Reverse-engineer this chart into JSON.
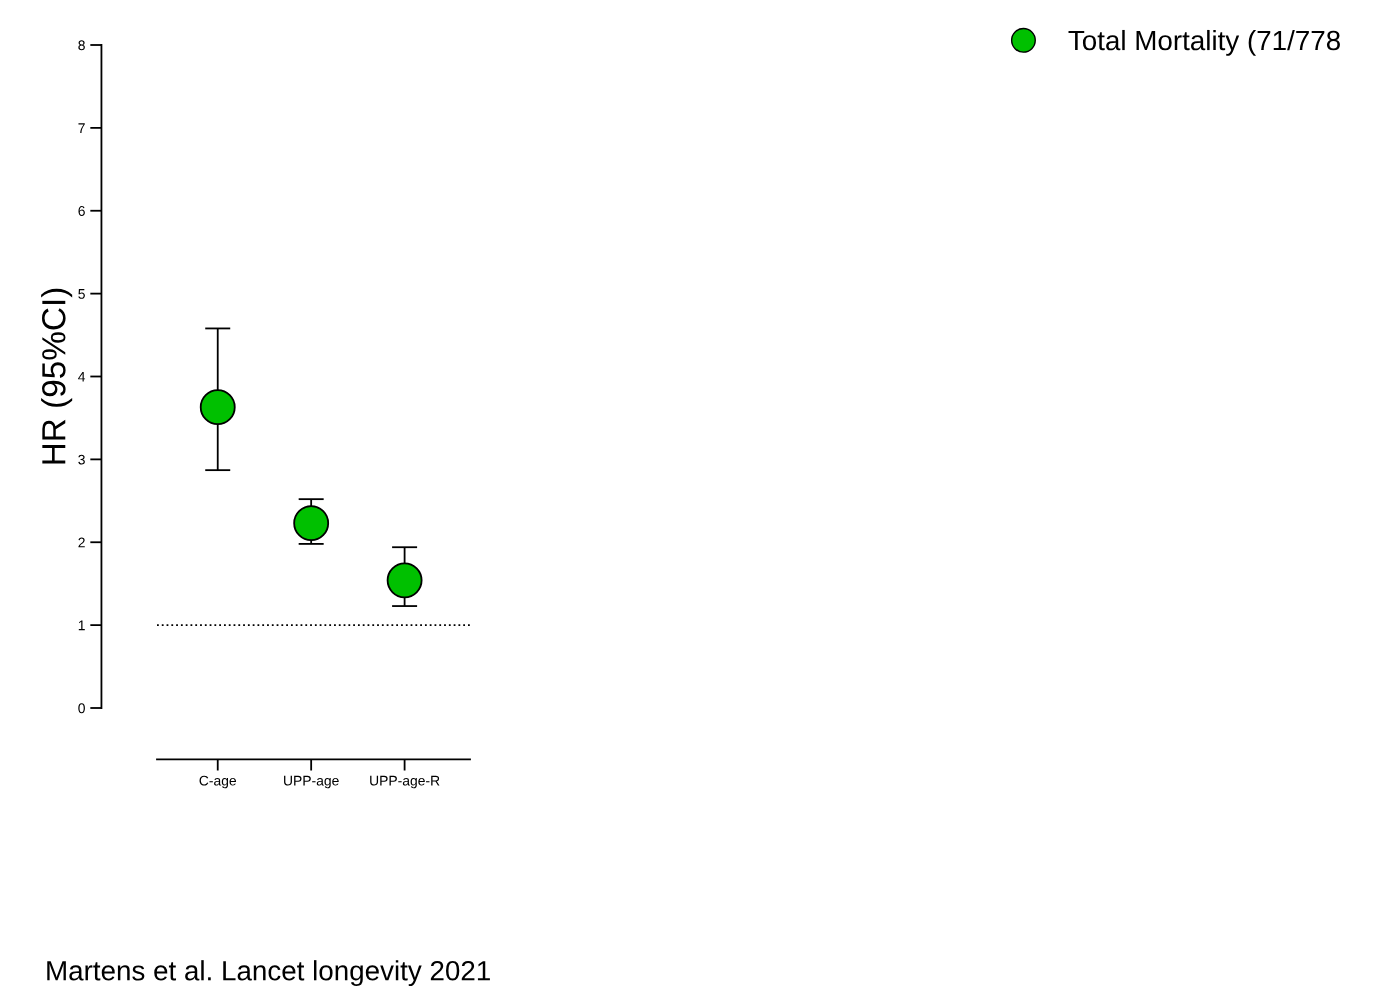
{
  "chart_data": {
    "type": "scatter",
    "ylabel": "HR (95%CI)",
    "categories": [
      "C-age",
      "UPP-age",
      "UPP-age-R"
    ],
    "series": [
      {
        "name": "Total Mortality (71/778",
        "color": "#00c000",
        "values": [
          3.63,
          2.23,
          1.54
        ],
        "errors": [
          [
            2.87,
            4.58
          ],
          [
            1.98,
            2.52
          ],
          [
            1.23,
            1.94
          ]
        ]
      }
    ],
    "ylim": [
      0,
      8
    ],
    "yticks": [
      0,
      1,
      2,
      3,
      4,
      5,
      6,
      7,
      8
    ],
    "ref_lines": [
      {
        "axis": "y",
        "value": 1,
        "line_style": "dotted"
      }
    ],
    "marker": "circle",
    "legend": "top right",
    "grid": false,
    "annotations": [
      "Martens et al. Lancet longevity 2021"
    ]
  }
}
